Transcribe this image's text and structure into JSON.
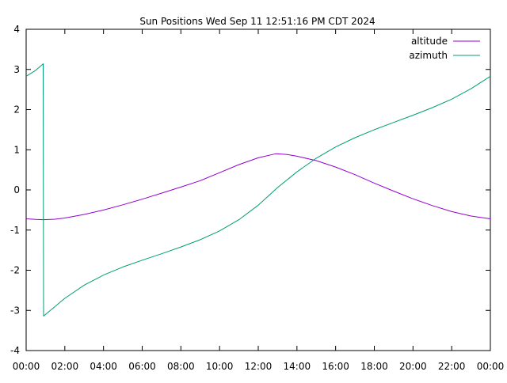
{
  "chart_data": {
    "type": "line",
    "title": "Sun Positions Wed Sep 11 12:51:16 PM CDT 2024",
    "xlabel": "",
    "ylabel": "",
    "xlim": [
      0,
      24
    ],
    "ylim": [
      -4,
      4
    ],
    "x_tick_values": [
      0,
      2,
      4,
      6,
      8,
      10,
      12,
      14,
      16,
      18,
      20,
      22,
      24
    ],
    "x_tick_labels": [
      "00:00",
      "02:00",
      "04:00",
      "06:00",
      "08:00",
      "10:00",
      "12:00",
      "14:00",
      "16:00",
      "18:00",
      "20:00",
      "22:00",
      "00:00"
    ],
    "y_tick_values": [
      -4,
      -3,
      -2,
      -1,
      0,
      1,
      2,
      3,
      4
    ],
    "y_tick_labels": [
      "-4",
      "-3",
      "-2",
      "-1",
      "0",
      "1",
      "2",
      "3",
      "4"
    ],
    "grid": false,
    "legend_position": "top-right",
    "series": [
      {
        "name": "altitude",
        "color": "#9400d3",
        "points": [
          [
            0,
            -0.72
          ],
          [
            0.5,
            -0.735
          ],
          [
            0.9,
            -0.74
          ],
          [
            1.5,
            -0.73
          ],
          [
            2,
            -0.7
          ],
          [
            3,
            -0.61
          ],
          [
            4,
            -0.5
          ],
          [
            5,
            -0.37
          ],
          [
            6,
            -0.23
          ],
          [
            7,
            -0.08
          ],
          [
            8,
            0.07
          ],
          [
            9,
            0.23
          ],
          [
            10,
            0.43
          ],
          [
            11,
            0.63
          ],
          [
            12,
            0.8
          ],
          [
            12.9,
            0.9
          ],
          [
            13.5,
            0.88
          ],
          [
            14,
            0.84
          ],
          [
            15,
            0.73
          ],
          [
            16,
            0.57
          ],
          [
            17,
            0.38
          ],
          [
            18,
            0.17
          ],
          [
            19,
            -0.03
          ],
          [
            20,
            -0.22
          ],
          [
            21,
            -0.39
          ],
          [
            22,
            -0.54
          ],
          [
            23,
            -0.65
          ],
          [
            24,
            -0.72
          ]
        ]
      },
      {
        "name": "azimuth",
        "color": "#009e73",
        "points": [
          [
            0,
            2.83
          ],
          [
            0.5,
            2.98
          ],
          [
            0.88,
            3.14
          ],
          [
            0.9,
            -3.14
          ],
          [
            1.5,
            -2.9
          ],
          [
            2,
            -2.7
          ],
          [
            3,
            -2.37
          ],
          [
            4,
            -2.12
          ],
          [
            5,
            -1.92
          ],
          [
            6,
            -1.75
          ],
          [
            7,
            -1.59
          ],
          [
            8,
            -1.42
          ],
          [
            9,
            -1.24
          ],
          [
            10,
            -1.02
          ],
          [
            11,
            -0.74
          ],
          [
            12,
            -0.38
          ],
          [
            13,
            0.06
          ],
          [
            14,
            0.45
          ],
          [
            15,
            0.79
          ],
          [
            16,
            1.07
          ],
          [
            17,
            1.3
          ],
          [
            18,
            1.5
          ],
          [
            19,
            1.68
          ],
          [
            20,
            1.86
          ],
          [
            21,
            2.05
          ],
          [
            22,
            2.26
          ],
          [
            23,
            2.52
          ],
          [
            24,
            2.83
          ]
        ]
      }
    ]
  }
}
